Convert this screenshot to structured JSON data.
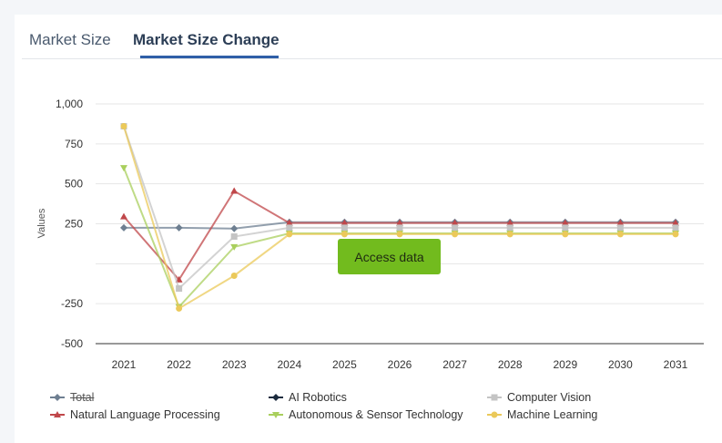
{
  "tabs": [
    {
      "label": "Market Size"
    },
    {
      "label": "Market Size Change"
    }
  ],
  "access_button": "Access data",
  "chart_data": {
    "type": "line",
    "ylabel": "Values",
    "xlabel": "",
    "ylim": [
      -500,
      1000
    ],
    "yticks": [
      -500,
      -250,
      0,
      250,
      500,
      750,
      1000
    ],
    "ytick_labels": [
      "-500",
      "-250",
      "",
      "250",
      "500",
      "750",
      "1,000"
    ],
    "categories": [
      "2021",
      "2022",
      "2023",
      "2024",
      "2025",
      "2026",
      "2027",
      "2028",
      "2029",
      "2030",
      "2031"
    ],
    "series": [
      {
        "name": "Total",
        "color": "#6e7f91",
        "marker": "diamond",
        "hidden": true,
        "values": [
          225,
          225,
          220,
          260,
          260,
          260,
          260,
          260,
          260,
          260,
          260
        ]
      },
      {
        "name": "AI Robotics",
        "color": "#1c2b3e",
        "marker": "diamond",
        "hidden": false,
        "values": [
          null,
          null,
          null,
          null,
          null,
          null,
          null,
          null,
          null,
          null,
          null
        ]
      },
      {
        "name": "Computer Vision",
        "color": "#c4c4c4",
        "marker": "square",
        "hidden": false,
        "values": [
          860,
          -155,
          170,
          225,
          225,
          225,
          225,
          225,
          225,
          225,
          225
        ]
      },
      {
        "name": "Natural Language Processing",
        "color": "#c0474a",
        "marker": "triangle",
        "hidden": false,
        "values": [
          295,
          -100,
          455,
          255,
          255,
          255,
          255,
          255,
          255,
          255,
          255
        ]
      },
      {
        "name": "Autonomous & Sensor Technology",
        "color": "#a9cf5d",
        "marker": "triangle-down",
        "hidden": false,
        "values": [
          600,
          -270,
          105,
          190,
          190,
          190,
          190,
          190,
          190,
          190,
          190
        ]
      },
      {
        "name": "Machine Learning",
        "color": "#ebc95a",
        "marker": "circle",
        "hidden": false,
        "values": [
          860,
          -280,
          -75,
          185,
          185,
          185,
          185,
          185,
          185,
          185,
          185
        ]
      }
    ],
    "grid": true,
    "legend": "bottom"
  }
}
